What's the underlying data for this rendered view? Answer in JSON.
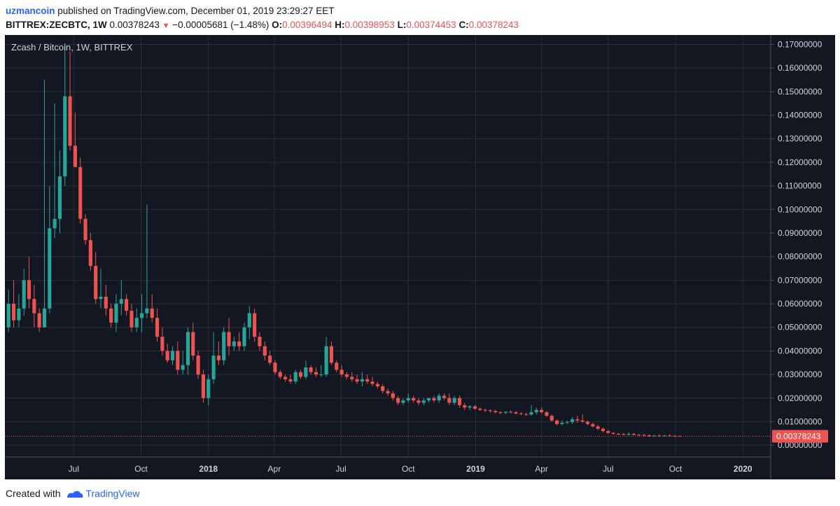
{
  "header": {
    "author": "uzmancoin",
    "published_text": "published on TradingView.com, December 01, 2019 23:29:27 EET",
    "symbol": "BITTREX:ZECBTC, 1W",
    "last": "0.00378243",
    "change": "−0.00005681 (−1.48%)",
    "o_label": "O:",
    "o_value": "0.00396494",
    "h_label": "H:",
    "h_value": "0.00398953",
    "l_label": "L:",
    "l_value": "0.00374453",
    "c_label": "C:",
    "c_value": "0.00378243"
  },
  "footer": {
    "created_text": "Created with",
    "brand": "TradingView"
  },
  "colors": {
    "background": "#131722",
    "grid": "#2a2e39",
    "up": "#26a69a",
    "down": "#ef5350",
    "axis_text": "#d1d4dc"
  },
  "chart_data": {
    "type": "candlestick",
    "title": "Zcash / Bitcoin, 1W, BITTREX",
    "ylim": [
      -0.005,
      0.174
    ],
    "y_ticks": [
      0.0,
      0.01,
      0.02,
      0.03,
      0.04,
      0.05,
      0.06,
      0.07,
      0.08,
      0.09,
      0.1,
      0.11,
      0.12,
      0.13,
      0.14,
      0.15,
      0.16,
      0.17
    ],
    "y_tick_labels": [
      "0.00000000",
      "0.01000000",
      "0.02000000",
      "0.03000000",
      "0.04000000",
      "0.05000000",
      "0.06000000",
      "0.07000000",
      "0.08000000",
      "0.09000000",
      "0.10000000",
      "0.11000000",
      "0.12000000",
      "0.13000000",
      "0.14000000",
      "0.15000000",
      "0.16000000",
      "0.17000000"
    ],
    "x_range": [
      "2017-03-29",
      "2020-02-08"
    ],
    "x_ticks": [
      {
        "date": "2017-07-01",
        "label": "Jul",
        "bold": false
      },
      {
        "date": "2017-10-01",
        "label": "Oct",
        "bold": false
      },
      {
        "date": "2018-01-01",
        "label": "2018",
        "bold": true
      },
      {
        "date": "2018-04-01",
        "label": "Apr",
        "bold": false
      },
      {
        "date": "2018-07-01",
        "label": "Jul",
        "bold": false
      },
      {
        "date": "2018-10-01",
        "label": "Oct",
        "bold": false
      },
      {
        "date": "2019-01-01",
        "label": "2019",
        "bold": true
      },
      {
        "date": "2019-04-01",
        "label": "Apr",
        "bold": false
      },
      {
        "date": "2019-07-01",
        "label": "Jul",
        "bold": false
      },
      {
        "date": "2019-10-01",
        "label": "Oct",
        "bold": false
      },
      {
        "date": "2020-01-01",
        "label": "2020",
        "bold": true
      }
    ],
    "last_price": 0.00378243,
    "last_price_label": "0.00378243",
    "series": [
      {
        "start": "2017-04-03",
        "interval_days": 7,
        "ohlc": [
          [
            0.05,
            0.066,
            0.048,
            0.06
          ],
          [
            0.06,
            0.07,
            0.05,
            0.053
          ],
          [
            0.053,
            0.064,
            0.05,
            0.058
          ],
          [
            0.058,
            0.075,
            0.055,
            0.07
          ],
          [
            0.07,
            0.08,
            0.058,
            0.062
          ],
          [
            0.062,
            0.068,
            0.05,
            0.056
          ],
          [
            0.056,
            0.058,
            0.048,
            0.05
          ],
          [
            0.05,
            0.155,
            0.05,
            0.058
          ],
          [
            0.058,
            0.11,
            0.056,
            0.092
          ],
          [
            0.092,
            0.145,
            0.088,
            0.096
          ],
          [
            0.096,
            0.125,
            0.09,
            0.114
          ],
          [
            0.114,
            0.17,
            0.11,
            0.148
          ],
          [
            0.148,
            0.167,
            0.125,
            0.127
          ],
          [
            0.127,
            0.141,
            0.118,
            0.118
          ],
          [
            0.118,
            0.122,
            0.094,
            0.096
          ],
          [
            0.096,
            0.098,
            0.085,
            0.087
          ],
          [
            0.087,
            0.09,
            0.074,
            0.076
          ],
          [
            0.076,
            0.082,
            0.06,
            0.062
          ],
          [
            0.062,
            0.075,
            0.058,
            0.063
          ],
          [
            0.063,
            0.068,
            0.055,
            0.058
          ],
          [
            0.058,
            0.06,
            0.05,
            0.052
          ],
          [
            0.052,
            0.064,
            0.048,
            0.06
          ],
          [
            0.06,
            0.07,
            0.055,
            0.062
          ],
          [
            0.062,
            0.064,
            0.055,
            0.057
          ],
          [
            0.057,
            0.06,
            0.048,
            0.05
          ],
          [
            0.05,
            0.058,
            0.048,
            0.054
          ],
          [
            0.054,
            0.064,
            0.048,
            0.056
          ],
          [
            0.056,
            0.102,
            0.054,
            0.058
          ],
          [
            0.058,
            0.064,
            0.052,
            0.054
          ],
          [
            0.054,
            0.058,
            0.044,
            0.046
          ],
          [
            0.046,
            0.05,
            0.038,
            0.04
          ],
          [
            0.04,
            0.043,
            0.035,
            0.036
          ],
          [
            0.036,
            0.042,
            0.034,
            0.04
          ],
          [
            0.04,
            0.044,
            0.03,
            0.032
          ],
          [
            0.032,
            0.04,
            0.03,
            0.034
          ],
          [
            0.034,
            0.05,
            0.03,
            0.048
          ],
          [
            0.048,
            0.052,
            0.036,
            0.038
          ],
          [
            0.038,
            0.04,
            0.028,
            0.03
          ],
          [
            0.03,
            0.032,
            0.018,
            0.02
          ],
          [
            0.02,
            0.03,
            0.017,
            0.028
          ],
          [
            0.028,
            0.048,
            0.026,
            0.038
          ],
          [
            0.038,
            0.044,
            0.034,
            0.036
          ],
          [
            0.036,
            0.05,
            0.034,
            0.048
          ],
          [
            0.048,
            0.054,
            0.038,
            0.042
          ],
          [
            0.042,
            0.046,
            0.04,
            0.044
          ],
          [
            0.044,
            0.048,
            0.04,
            0.042
          ],
          [
            0.042,
            0.052,
            0.04,
            0.05
          ],
          [
            0.05,
            0.059,
            0.045,
            0.056
          ],
          [
            0.056,
            0.058,
            0.044,
            0.046
          ],
          [
            0.046,
            0.048,
            0.04,
            0.042
          ],
          [
            0.042,
            0.044,
            0.036,
            0.038
          ],
          [
            0.038,
            0.04,
            0.034,
            0.035
          ],
          [
            0.035,
            0.036,
            0.03,
            0.031
          ],
          [
            0.031,
            0.032,
            0.028,
            0.029
          ],
          [
            0.029,
            0.03,
            0.027,
            0.028
          ],
          [
            0.028,
            0.03,
            0.026,
            0.027
          ],
          [
            0.027,
            0.032,
            0.026,
            0.031
          ],
          [
            0.031,
            0.032,
            0.028,
            0.029
          ],
          [
            0.029,
            0.036,
            0.028,
            0.033
          ],
          [
            0.033,
            0.034,
            0.03,
            0.031
          ],
          [
            0.031,
            0.033,
            0.029,
            0.03
          ],
          [
            0.03,
            0.034,
            0.029,
            0.03
          ],
          [
            0.03,
            0.046,
            0.029,
            0.042
          ],
          [
            0.042,
            0.044,
            0.034,
            0.035
          ],
          [
            0.035,
            0.036,
            0.031,
            0.032
          ],
          [
            0.032,
            0.034,
            0.029,
            0.03
          ],
          [
            0.03,
            0.031,
            0.028,
            0.029
          ],
          [
            0.029,
            0.031,
            0.027,
            0.028
          ],
          [
            0.028,
            0.03,
            0.026,
            0.027
          ],
          [
            0.027,
            0.031,
            0.025,
            0.028
          ],
          [
            0.028,
            0.03,
            0.026,
            0.027
          ],
          [
            0.027,
            0.029,
            0.025,
            0.026
          ],
          [
            0.026,
            0.027,
            0.024,
            0.025
          ],
          [
            0.025,
            0.026,
            0.022,
            0.023
          ],
          [
            0.023,
            0.024,
            0.021,
            0.022
          ],
          [
            0.022,
            0.023,
            0.019,
            0.02
          ],
          [
            0.02,
            0.021,
            0.017,
            0.018
          ],
          [
            0.018,
            0.02,
            0.017,
            0.019
          ],
          [
            0.019,
            0.022,
            0.018,
            0.02
          ],
          [
            0.02,
            0.021,
            0.018,
            0.019
          ],
          [
            0.019,
            0.02,
            0.017,
            0.018
          ],
          [
            0.018,
            0.02,
            0.017,
            0.019
          ],
          [
            0.019,
            0.02,
            0.018,
            0.02
          ],
          [
            0.02,
            0.021,
            0.018,
            0.019
          ],
          [
            0.019,
            0.022,
            0.018,
            0.021
          ],
          [
            0.021,
            0.022,
            0.019,
            0.02
          ],
          [
            0.02,
            0.022,
            0.017,
            0.018
          ],
          [
            0.018,
            0.021,
            0.017,
            0.02
          ],
          [
            0.02,
            0.021,
            0.016,
            0.017
          ],
          [
            0.017,
            0.018,
            0.015,
            0.016
          ],
          [
            0.016,
            0.017,
            0.015,
            0.0165
          ],
          [
            0.0165,
            0.017,
            0.015,
            0.0155
          ],
          [
            0.0155,
            0.016,
            0.0145,
            0.015
          ],
          [
            0.015,
            0.0155,
            0.014,
            0.0148
          ],
          [
            0.0148,
            0.0152,
            0.0138,
            0.0145
          ],
          [
            0.0145,
            0.015,
            0.0135,
            0.014
          ],
          [
            0.014,
            0.0145,
            0.013,
            0.0138
          ],
          [
            0.0138,
            0.0143,
            0.013,
            0.0142
          ],
          [
            0.0142,
            0.0148,
            0.0135,
            0.014
          ],
          [
            0.014,
            0.0145,
            0.013,
            0.0135
          ],
          [
            0.0135,
            0.014,
            0.0128,
            0.0132
          ],
          [
            0.0132,
            0.0138,
            0.0125,
            0.013
          ],
          [
            0.013,
            0.017,
            0.0125,
            0.014
          ],
          [
            0.014,
            0.016,
            0.013,
            0.015
          ],
          [
            0.015,
            0.016,
            0.0135,
            0.014
          ],
          [
            0.014,
            0.0145,
            0.012,
            0.0125
          ],
          [
            0.0125,
            0.013,
            0.01,
            0.0105
          ],
          [
            0.0105,
            0.011,
            0.0085,
            0.009
          ],
          [
            0.009,
            0.0105,
            0.0085,
            0.0095
          ],
          [
            0.0095,
            0.0105,
            0.009,
            0.0098
          ],
          [
            0.0098,
            0.012,
            0.009,
            0.011
          ],
          [
            0.011,
            0.0125,
            0.0095,
            0.0105
          ],
          [
            0.0105,
            0.013,
            0.0095,
            0.01
          ],
          [
            0.01,
            0.0105,
            0.0085,
            0.009
          ],
          [
            0.009,
            0.0095,
            0.0075,
            0.008
          ],
          [
            0.008,
            0.0085,
            0.0065,
            0.007
          ],
          [
            0.007,
            0.0075,
            0.0055,
            0.006
          ],
          [
            0.006,
            0.0065,
            0.005,
            0.0052
          ],
          [
            0.0052,
            0.0055,
            0.0045,
            0.0048
          ],
          [
            0.0048,
            0.0052,
            0.0044,
            0.0047
          ],
          [
            0.0047,
            0.0052,
            0.0042,
            0.0045
          ],
          [
            0.0045,
            0.0055,
            0.0042,
            0.0048
          ],
          [
            0.0048,
            0.0052,
            0.0042,
            0.0044
          ],
          [
            0.0044,
            0.0048,
            0.004,
            0.0043
          ],
          [
            0.0043,
            0.0048,
            0.0038,
            0.0042
          ],
          [
            0.0042,
            0.0045,
            0.0036,
            0.0038
          ],
          [
            0.0038,
            0.0043,
            0.0035,
            0.0041
          ],
          [
            0.0041,
            0.0046,
            0.0037,
            0.0039
          ],
          [
            0.0039,
            0.0044,
            0.0036,
            0.0041
          ],
          [
            0.0041,
            0.0046,
            0.0038,
            0.004
          ],
          [
            0.004,
            0.0042,
            0.0037,
            0.00396494
          ],
          [
            0.00396494,
            0.00398953,
            0.00374453,
            0.00378243
          ]
        ]
      }
    ]
  }
}
